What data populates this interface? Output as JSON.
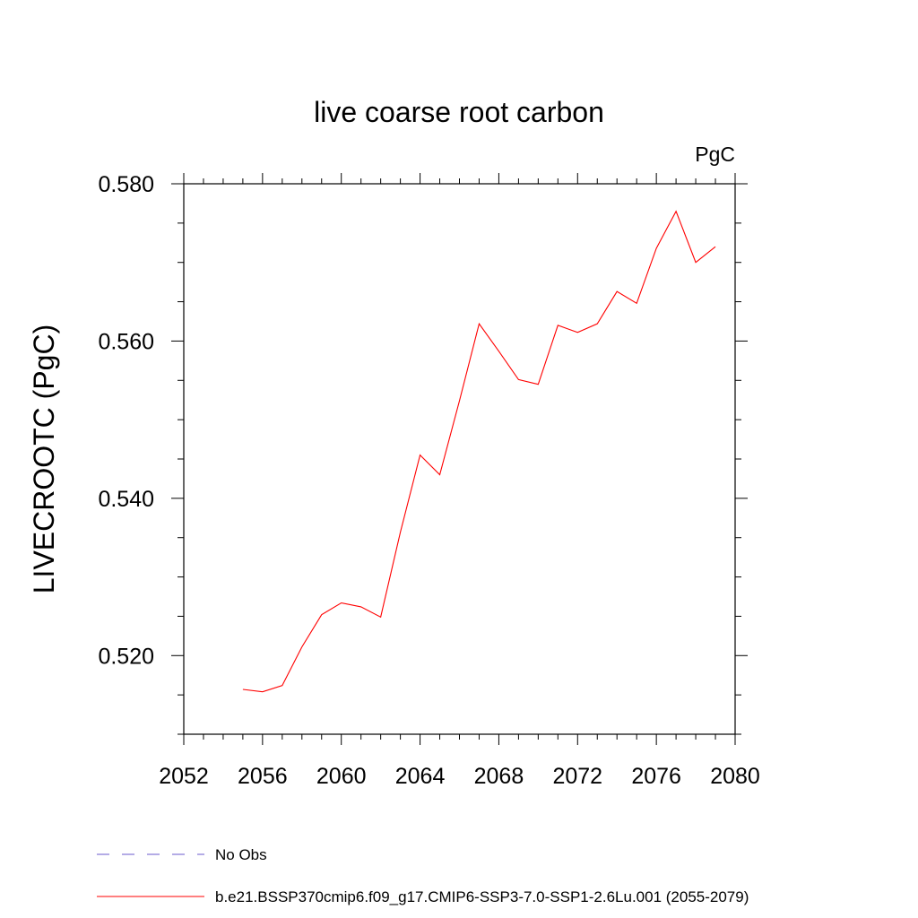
{
  "chart_data": {
    "type": "line",
    "title": "live coarse root carbon",
    "units": "PgC",
    "ylabel": "LIVECROOTC  (PgC)",
    "xlabel": "",
    "xlim": [
      2052,
      2080
    ],
    "ylim": [
      0.51,
      0.58
    ],
    "x_ticks": [
      "2052",
      "2056",
      "2060",
      "2064",
      "2068",
      "2072",
      "2076",
      "2080"
    ],
    "y_ticks": [
      "0.520",
      "0.540",
      "0.560",
      "0.580"
    ],
    "grid": false,
    "series": [
      {
        "name": "b.e21.BSSP370cmip6.f09_g17.CMIP6-SSP3-7.0-SSP1-2.6Lu.001 (2055-2079)",
        "color": "#ff0000",
        "x": [
          2055,
          2056,
          2057,
          2058,
          2059,
          2060,
          2061,
          2062,
          2063,
          2064,
          2065,
          2066,
          2067,
          2068,
          2069,
          2070,
          2071,
          2072,
          2073,
          2074,
          2075,
          2076,
          2077,
          2078,
          2079
        ],
        "y": [
          0.5157,
          0.5154,
          0.5162,
          0.5211,
          0.5252,
          0.5267,
          0.5262,
          0.5249,
          0.5357,
          0.5455,
          0.543,
          0.5524,
          0.5622,
          0.5587,
          0.5551,
          0.5545,
          0.562,
          0.5611,
          0.5622,
          0.5663,
          0.5648,
          0.5718,
          0.5765,
          0.57,
          0.572
        ]
      }
    ],
    "legend": {
      "placement": "bottom-left",
      "entries": [
        {
          "label": "No Obs",
          "color": "#6a5acd",
          "style": "dashed"
        },
        {
          "label": "b.e21.BSSP370cmip6.f09_g17.CMIP6-SSP3-7.0-SSP1-2.6Lu.001 (2055-2079)",
          "color": "#ff0000",
          "style": "solid"
        }
      ]
    }
  }
}
